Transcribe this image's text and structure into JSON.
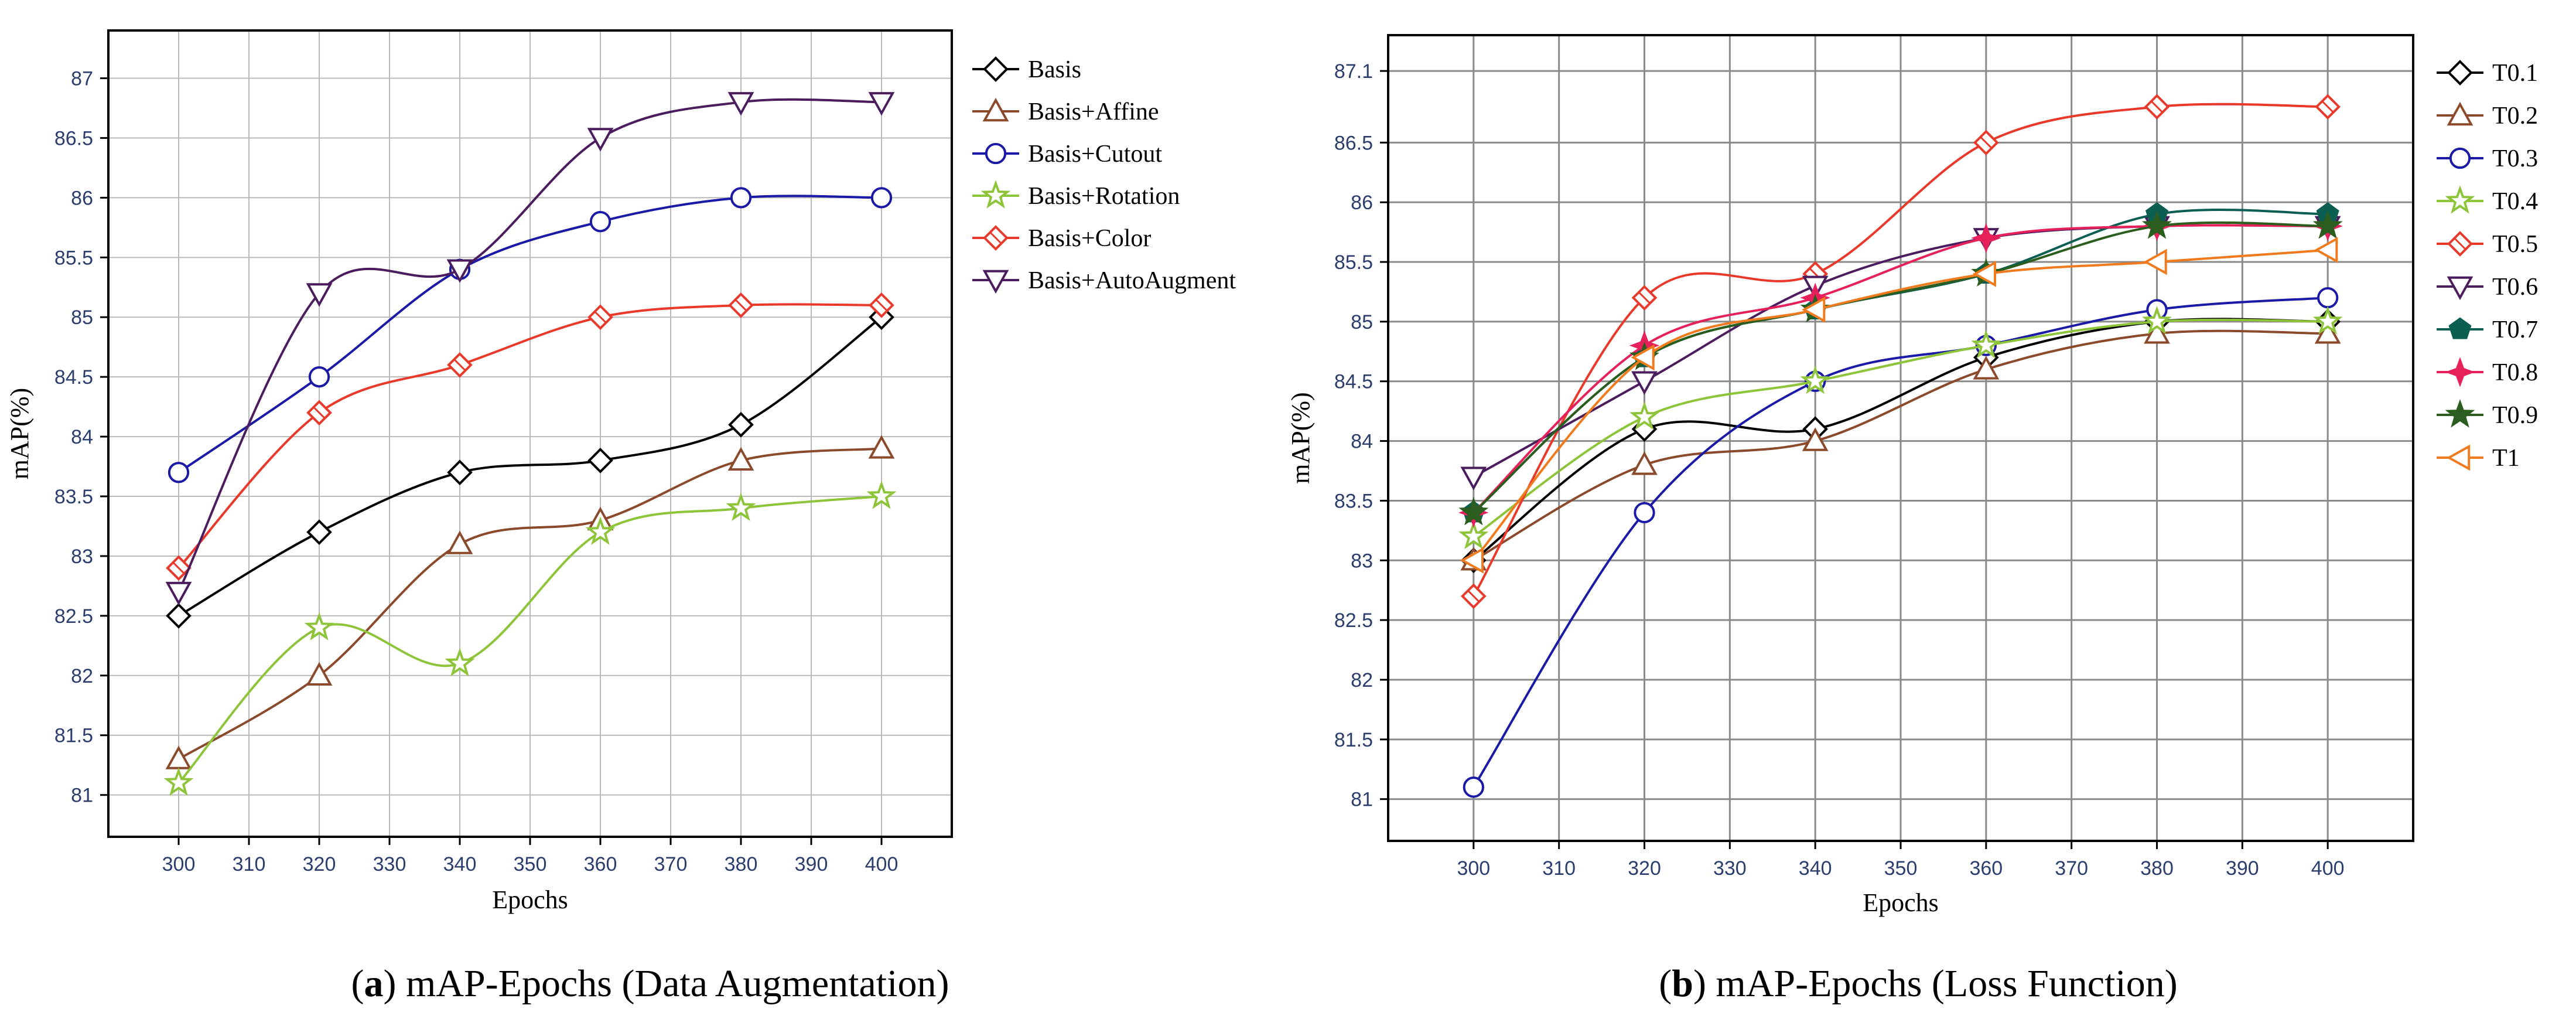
{
  "chart_data": [
    {
      "type": "line",
      "caption_letter": "a",
      "caption_text": ") mAP-Epochs (Data Augmentation)",
      "caption_open": "(",
      "title": "",
      "xlabel": "Epochs",
      "ylabel": "mAP(%)",
      "xlim": [
        290,
        410
      ],
      "ylim": [
        80.65,
        87.4
      ],
      "xticks": [
        300,
        310,
        320,
        330,
        340,
        350,
        360,
        370,
        380,
        390,
        400
      ],
      "yticks": [
        81,
        81.5,
        82,
        82.5,
        83,
        83.5,
        84,
        84.5,
        85,
        85.5,
        86,
        86.5,
        87
      ],
      "x": [
        300,
        320,
        340,
        360,
        380,
        400
      ],
      "legend_position": "right",
      "series": [
        {
          "name": "Basis",
          "color": "#000000",
          "marker": "diamond",
          "values": [
            82.5,
            83.2,
            83.7,
            83.8,
            84.1,
            85.0
          ]
        },
        {
          "name": "Basis+Affine",
          "color": "#8b4a2b",
          "marker": "triangle-up",
          "values": [
            81.3,
            82.0,
            83.1,
            83.3,
            83.8,
            83.9
          ]
        },
        {
          "name": "Basis+Cutout",
          "color": "#1a1aa6",
          "marker": "circle",
          "values": [
            83.7,
            84.5,
            85.4,
            85.8,
            86.0,
            86.0
          ]
        },
        {
          "name": "Basis+Rotation",
          "color": "#8dc43a",
          "marker": "star",
          "values": [
            81.1,
            82.4,
            82.1,
            83.2,
            83.4,
            83.5
          ]
        },
        {
          "name": "Basis+Color",
          "color": "#e8392b",
          "marker": "diamond-cross",
          "values": [
            82.9,
            84.2,
            84.6,
            85.0,
            85.1,
            85.1
          ]
        },
        {
          "name": "Basis+AutoAugment",
          "color": "#4b1c5e",
          "marker": "triangle-down",
          "values": [
            82.7,
            85.2,
            85.4,
            86.5,
            86.8,
            86.8
          ]
        }
      ]
    },
    {
      "type": "line",
      "caption_letter": "b",
      "caption_text": ") mAP-Epochs (Loss Function)",
      "caption_open": "(",
      "title": "",
      "xlabel": "Epochs",
      "ylabel": "mAP(%)",
      "xlim": [
        290,
        410
      ],
      "ylim": [
        80.65,
        87.4
      ],
      "xticks": [
        300,
        310,
        320,
        330,
        340,
        350,
        360,
        370,
        380,
        390,
        400
      ],
      "yticks": [
        81,
        81.5,
        82,
        82.5,
        83,
        83.5,
        84,
        84.5,
        85,
        85.5,
        86,
        86.5,
        87.1
      ],
      "x": [
        300,
        320,
        340,
        360,
        380,
        400
      ],
      "legend_position": "right",
      "series": [
        {
          "name": "T0.1",
          "color": "#000000",
          "marker": "diamond",
          "values": [
            83.0,
            84.1,
            84.1,
            84.7,
            85.0,
            85.0
          ]
        },
        {
          "name": "T0.2",
          "color": "#8b4a2b",
          "marker": "triangle-up",
          "values": [
            83.0,
            83.8,
            84.0,
            84.6,
            84.9,
            84.9
          ]
        },
        {
          "name": "T0.3",
          "color": "#1a1aa6",
          "marker": "circle",
          "values": [
            81.1,
            83.4,
            84.5,
            84.8,
            85.1,
            85.2
          ]
        },
        {
          "name": "T0.4",
          "color": "#8dc43a",
          "marker": "star",
          "values": [
            83.2,
            84.2,
            84.5,
            84.8,
            85.0,
            85.0
          ]
        },
        {
          "name": "T0.5",
          "color": "#e8392b",
          "marker": "diamond-cross",
          "values": [
            82.7,
            85.2,
            85.4,
            86.5,
            86.8,
            86.8
          ]
        },
        {
          "name": "T0.6",
          "color": "#4b1c5e",
          "marker": "triangle-down",
          "values": [
            83.7,
            84.5,
            85.3,
            85.7,
            85.8,
            85.8
          ]
        },
        {
          "name": "T0.7",
          "color": "#0b5e52",
          "marker": "pentagon-filled",
          "values": [
            83.4,
            84.7,
            85.1,
            85.4,
            85.9,
            85.9
          ]
        },
        {
          "name": "T0.8",
          "color": "#e6205a",
          "marker": "star4-filled",
          "values": [
            83.4,
            84.8,
            85.2,
            85.7,
            85.8,
            85.8
          ]
        },
        {
          "name": "T0.9",
          "color": "#2b5e1e",
          "marker": "star-filled",
          "values": [
            83.4,
            84.7,
            85.1,
            85.4,
            85.8,
            85.8
          ]
        },
        {
          "name": "T1",
          "color": "#f07a1e",
          "marker": "triangle-left",
          "values": [
            83.0,
            84.7,
            85.1,
            85.4,
            85.5,
            85.6
          ]
        }
      ]
    }
  ]
}
